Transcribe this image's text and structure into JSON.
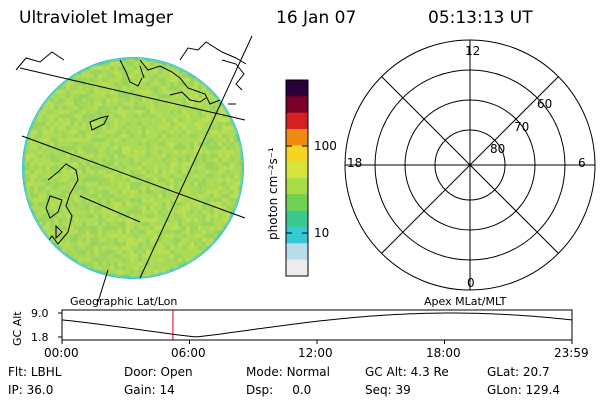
{
  "header": {
    "instrument": "Ultraviolet Imager",
    "date": "16 Jan 07",
    "time": "05:13:13 UT"
  },
  "colorbar": {
    "unit_label": "photon cm⁻²s⁻¹",
    "tick_labels": [
      "100",
      "10"
    ],
    "colors": [
      "#2a003a",
      "#7a0028",
      "#d42020",
      "#f08a10",
      "#f4d520",
      "#d8e43a",
      "#a8dc48",
      "#70d050",
      "#3ac890",
      "#34c8d8",
      "#b8dcec",
      "#ececec"
    ]
  },
  "globe": {
    "surface_color": "#a6da5a",
    "limb_color": "#33c6dd"
  },
  "polar_plot": {
    "lat_labels": [
      "60",
      "70",
      "80"
    ],
    "mlt_labels": {
      "top": "12",
      "left": "18",
      "right": "6",
      "bottom": "0"
    }
  },
  "altitude_plot": {
    "ylabel": "GC Alt",
    "ymax": "9.0",
    "ymin": "1.8",
    "left_title": "Geographic Lat/Lon",
    "right_title": "Apex MLat/MLT",
    "x_ticks": [
      "00:00",
      "06:00",
      "12:00",
      "18:00",
      "23:59"
    ],
    "marker_hour": 5.22
  },
  "status": {
    "row1": [
      {
        "label": "Flt:",
        "value": "LBHL"
      },
      {
        "label": "Door:",
        "value": "Open"
      },
      {
        "label": "Mode:",
        "value": "Normal"
      },
      {
        "label": "GC Alt:",
        "value": "4.3 Re"
      },
      {
        "label": "GLat:",
        "value": "20.7"
      }
    ],
    "row2": [
      {
        "label": "IP:",
        "value": "36.0"
      },
      {
        "label": "Gain:",
        "value": "14"
      },
      {
        "label": "Dsp:",
        "value": "0.0"
      },
      {
        "label": "Seq:",
        "value": "39"
      },
      {
        "label": "GLon:",
        "value": "129.4"
      }
    ]
  }
}
